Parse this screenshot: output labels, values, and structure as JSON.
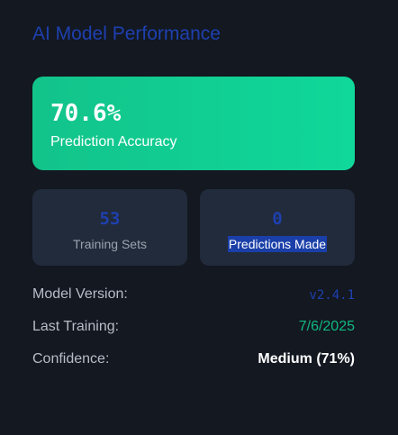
{
  "header": {
    "title": "AI Model Performance"
  },
  "accuracy": {
    "value": "70.6%",
    "label": "Prediction Accuracy"
  },
  "stats": [
    {
      "value": "53",
      "label": "Training Sets"
    },
    {
      "value": "0",
      "label": "Predictions Made"
    }
  ],
  "info": {
    "version_label": "Model Version:",
    "version_value": "v2.4.1",
    "training_label": "Last Training:",
    "training_value": "7/6/2025",
    "confidence_label": "Confidence:",
    "confidence_value": "Medium (71%)"
  },
  "colors": {
    "background": "#131821",
    "accent_blue": "#1e40af",
    "accent_green": "#10d89a",
    "card_bg": "#222b3b",
    "success": "#10b981"
  }
}
